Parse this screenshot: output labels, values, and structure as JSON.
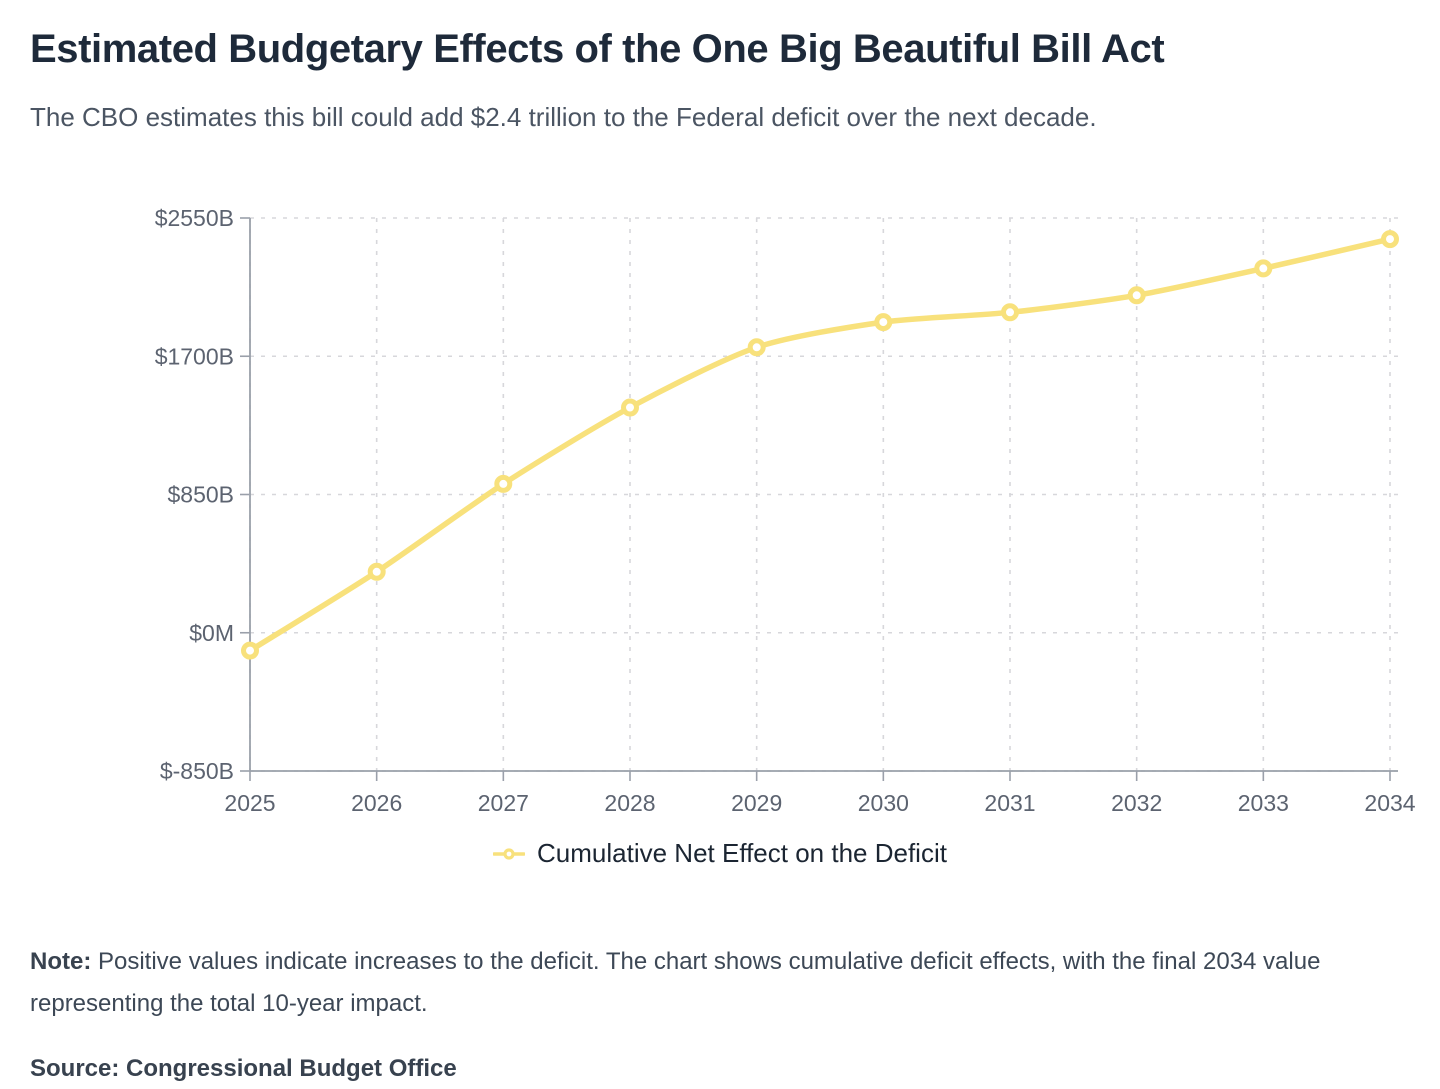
{
  "header": {
    "title": "Estimated Budgetary Effects of the One Big Beautiful Bill Act",
    "subtitle": "The CBO estimates this bill could add $2.4 trillion to the Federal deficit over the next decade."
  },
  "chart_data": {
    "type": "line",
    "title": "Estimated Budgetary Effects of the One Big Beautiful Bill Act",
    "x": [
      2025,
      2026,
      2027,
      2028,
      2029,
      2030,
      2031,
      2032,
      2033,
      2034
    ],
    "series": [
      {
        "name": "Cumulative Net Effect on the Deficit",
        "values": [
          -110,
          375,
          915,
          1385,
          1755,
          1910,
          1970,
          2075,
          2240,
          2420
        ]
      }
    ],
    "units": "billions of dollars",
    "ylim": [
      -850,
      2550
    ],
    "y_ticks": [
      {
        "label": "$2550B",
        "value": 2550
      },
      {
        "label": "$1700B",
        "value": 1700
      },
      {
        "label": "$850B",
        "value": 850
      },
      {
        "label": "$0M",
        "value": 0
      },
      {
        "label": "$-850B",
        "value": -850
      }
    ],
    "grid": "dashed",
    "legend_position": "bottom",
    "line_color": "#F8E17C",
    "marker_fill": "#ffffff",
    "grid_color": "#d7d7db",
    "axis_color": "#9aa0aa",
    "tick_label_color": "#5c6370"
  },
  "legend": {
    "label": "Cumulative Net Effect on the Deficit"
  },
  "note": {
    "label": "Note:",
    "text": " Positive values indicate increases to the deficit. The chart shows cumulative deficit effects, with the final 2034 value representing the total 10-year impact."
  },
  "source": {
    "text": "Source: Congressional Budget Office"
  }
}
